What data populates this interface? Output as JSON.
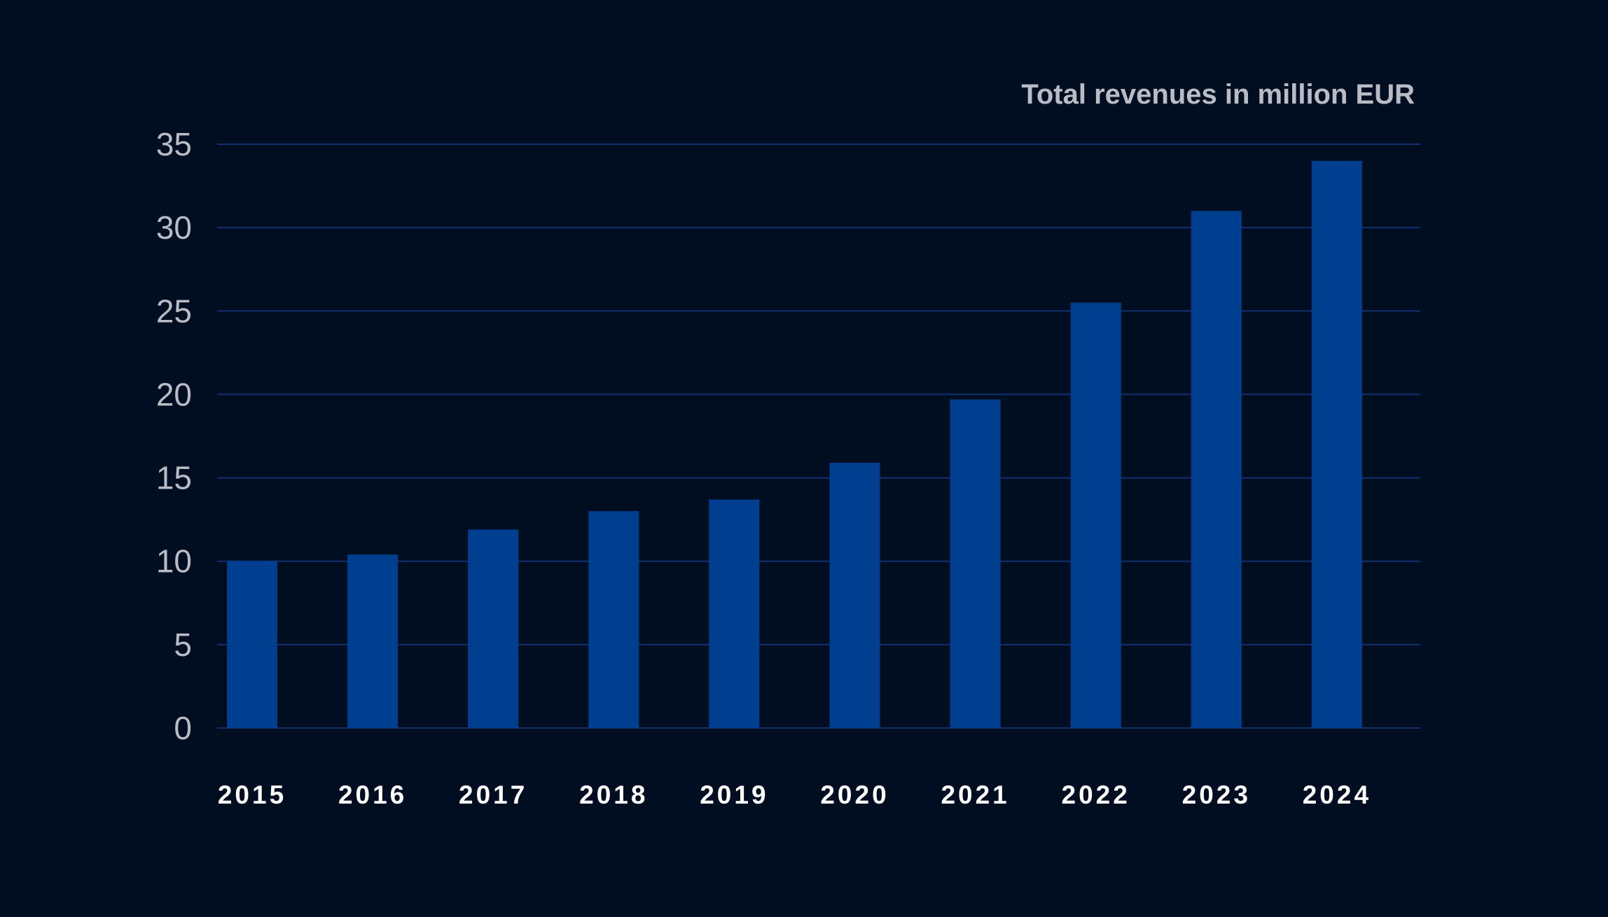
{
  "chart_data": {
    "type": "bar",
    "title": "Total revenues in million EUR",
    "xlabel": "",
    "ylabel": "",
    "categories": [
      "2015",
      "2016",
      "2017",
      "2018",
      "2019",
      "2020",
      "2021",
      "2022",
      "2023",
      "2024"
    ],
    "values": [
      10.0,
      10.4,
      11.9,
      13.0,
      13.7,
      15.9,
      19.7,
      25.5,
      31.0,
      34.0
    ],
    "ylim": [
      0,
      35
    ],
    "yticks": [
      "0",
      "5",
      "10",
      "15",
      "20",
      "25",
      "30",
      "35"
    ],
    "grid": true,
    "legend": "none"
  },
  "colors": {
    "background": "#010e22",
    "bar": "#003f90",
    "gridline": "#12306f",
    "ytick_text": "#b9bcc4",
    "xtick_text": "#ffffff",
    "title_text": "#b9bcc4"
  }
}
